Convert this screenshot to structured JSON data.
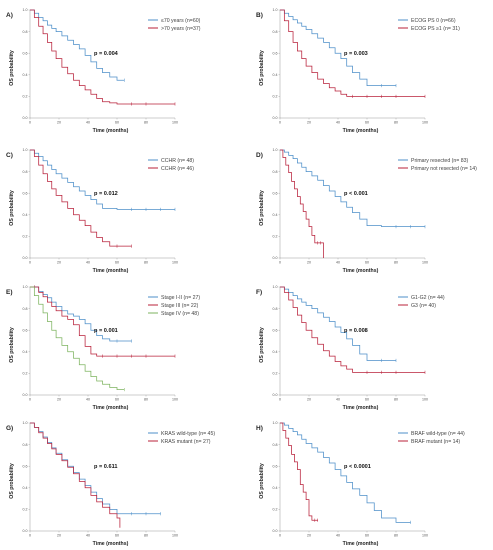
{
  "colors": {
    "blue": "#4d8fc9",
    "red": "#b8203a",
    "green": "#7db35f",
    "axis": "#999999"
  },
  "chart_data": [
    {
      "type": "line",
      "panel": "A)",
      "xlabel": "Time (months)",
      "ylabel": "OS probability",
      "p_value": "p = 0.004",
      "x_ticks": [
        "0",
        "20",
        "40",
        "60",
        "80",
        "100"
      ],
      "y_ticks": [
        "0.0",
        "0.2",
        "0.4",
        "0.6",
        "0.8",
        "1.0"
      ],
      "xlim": [
        0,
        100
      ],
      "ylim": [
        0,
        1
      ],
      "legend_position": "top-right",
      "series": [
        {
          "name": "≤70 years (n=60)",
          "color": "#4d8fc9",
          "x": [
            0,
            3,
            6,
            9,
            12,
            15,
            18,
            22,
            26,
            30,
            34,
            38,
            42,
            46,
            50,
            55,
            60,
            65
          ],
          "y": [
            1,
            0.97,
            0.93,
            0.9,
            0.86,
            0.83,
            0.8,
            0.76,
            0.72,
            0.68,
            0.64,
            0.58,
            0.52,
            0.46,
            0.42,
            0.38,
            0.35,
            0.35
          ]
        },
        {
          "name": ">70 years (n=37)",
          "color": "#b8203a",
          "x": [
            0,
            3,
            6,
            9,
            12,
            15,
            18,
            22,
            26,
            30,
            34,
            38,
            42,
            46,
            50,
            55,
            60,
            70,
            80,
            100
          ],
          "y": [
            1,
            0.93,
            0.85,
            0.78,
            0.7,
            0.62,
            0.55,
            0.47,
            0.41,
            0.35,
            0.3,
            0.26,
            0.22,
            0.18,
            0.15,
            0.14,
            0.13,
            0.13,
            0.13,
            0.13
          ]
        }
      ]
    },
    {
      "type": "line",
      "panel": "B)",
      "xlabel": "Time (months)",
      "ylabel": "OS probability",
      "p_value": "p = 0.003",
      "x_ticks": [
        "0",
        "20",
        "40",
        "60",
        "80",
        "100"
      ],
      "y_ticks": [
        "0.0",
        "0.2",
        "0.4",
        "0.6",
        "0.8",
        "1.0"
      ],
      "xlim": [
        0,
        100
      ],
      "ylim": [
        0,
        1
      ],
      "legend_position": "top-right",
      "series": [
        {
          "name": "ECOG PS 0 (n=66)",
          "color": "#4d8fc9",
          "x": [
            0,
            3,
            6,
            9,
            12,
            15,
            18,
            22,
            26,
            30,
            34,
            38,
            42,
            46,
            50,
            55,
            60,
            70,
            80
          ],
          "y": [
            1,
            0.97,
            0.94,
            0.91,
            0.88,
            0.85,
            0.82,
            0.78,
            0.74,
            0.7,
            0.65,
            0.6,
            0.55,
            0.48,
            0.42,
            0.36,
            0.3,
            0.3,
            0.3
          ]
        },
        {
          "name": "ECOG PS ≥1 (n= 31)",
          "color": "#b8203a",
          "x": [
            0,
            3,
            6,
            9,
            12,
            15,
            18,
            22,
            26,
            30,
            34,
            38,
            42,
            46,
            50,
            60,
            70,
            80,
            100
          ],
          "y": [
            1,
            0.9,
            0.8,
            0.7,
            0.62,
            0.55,
            0.48,
            0.42,
            0.36,
            0.32,
            0.28,
            0.25,
            0.22,
            0.2,
            0.2,
            0.2,
            0.2,
            0.2,
            0.2
          ]
        }
      ]
    },
    {
      "type": "line",
      "panel": "C)",
      "xlabel": "Time (months)",
      "ylabel": "OS probability",
      "p_value": "p = 0.012",
      "x_ticks": [
        "0",
        "20",
        "40",
        "60",
        "80",
        "100"
      ],
      "y_ticks": [
        "0.0",
        "0.2",
        "0.4",
        "0.6",
        "0.8",
        "1.0"
      ],
      "xlim": [
        0,
        100
      ],
      "ylim": [
        0,
        1
      ],
      "legend_position": "top-right",
      "series": [
        {
          "name": "CCHR (n= 48)",
          "color": "#4d8fc9",
          "x": [
            0,
            3,
            6,
            9,
            12,
            15,
            18,
            22,
            26,
            30,
            34,
            38,
            42,
            46,
            50,
            60,
            70,
            80,
            90,
            100
          ],
          "y": [
            1,
            0.97,
            0.94,
            0.9,
            0.86,
            0.82,
            0.78,
            0.74,
            0.7,
            0.66,
            0.62,
            0.58,
            0.54,
            0.5,
            0.46,
            0.45,
            0.45,
            0.45,
            0.45,
            0.45
          ]
        },
        {
          "name": "CCHR (n= 46)",
          "color": "#b8203a",
          "x": [
            0,
            3,
            6,
            9,
            12,
            15,
            18,
            22,
            26,
            30,
            34,
            38,
            42,
            46,
            50,
            55,
            60,
            70
          ],
          "y": [
            1,
            0.94,
            0.86,
            0.78,
            0.71,
            0.64,
            0.58,
            0.52,
            0.46,
            0.4,
            0.35,
            0.3,
            0.24,
            0.19,
            0.15,
            0.11,
            0.11,
            0.11
          ]
        }
      ]
    },
    {
      "type": "line",
      "panel": "D)",
      "xlabel": "Time (months)",
      "ylabel": "OS probability",
      "p_value": "p < 0.001",
      "x_ticks": [
        "0",
        "20",
        "40",
        "60",
        "80",
        "100"
      ],
      "y_ticks": [
        "0.0",
        "0.2",
        "0.4",
        "0.6",
        "0.8",
        "1.0"
      ],
      "xlim": [
        0,
        100
      ],
      "ylim": [
        0,
        1
      ],
      "legend_position": "top-right",
      "series": [
        {
          "name": "Primary resected (n= 83)",
          "color": "#4d8fc9",
          "x": [
            0,
            3,
            6,
            9,
            12,
            15,
            18,
            22,
            26,
            30,
            34,
            38,
            42,
            46,
            50,
            55,
            60,
            70,
            80,
            90,
            100
          ],
          "y": [
            1,
            0.98,
            0.95,
            0.92,
            0.88,
            0.84,
            0.8,
            0.76,
            0.72,
            0.67,
            0.62,
            0.57,
            0.52,
            0.47,
            0.42,
            0.36,
            0.3,
            0.29,
            0.29,
            0.29,
            0.29
          ]
        },
        {
          "name": "Primary not resected (n= 14)",
          "color": "#b8203a",
          "x": [
            0,
            2,
            4,
            6,
            8,
            10,
            12,
            14,
            16,
            18,
            20,
            22,
            24,
            26,
            28,
            30
          ],
          "y": [
            1,
            0.93,
            0.86,
            0.79,
            0.71,
            0.64,
            0.57,
            0.5,
            0.43,
            0.36,
            0.29,
            0.21,
            0.14,
            0.14,
            0.14,
            0
          ]
        }
      ]
    },
    {
      "type": "line",
      "panel": "E)",
      "xlabel": "Time (months)",
      "ylabel": "OS probability",
      "p_value": "p = 0.001",
      "x_ticks": [
        "0",
        "20",
        "40",
        "60",
        "80",
        "100"
      ],
      "y_ticks": [
        "0.0",
        "0.2",
        "0.4",
        "0.6",
        "0.8",
        "1.0"
      ],
      "xlim": [
        0,
        100
      ],
      "ylim": [
        0,
        1
      ],
      "legend_position": "top-right",
      "series": [
        {
          "name": "Stage I-II (n= 27)",
          "color": "#4d8fc9",
          "x": [
            0,
            3,
            6,
            9,
            12,
            15,
            18,
            22,
            26,
            30,
            34,
            38,
            42,
            46,
            50,
            55,
            60,
            70
          ],
          "y": [
            1,
            1,
            0.96,
            0.93,
            0.9,
            0.86,
            0.82,
            0.78,
            0.75,
            0.73,
            0.7,
            0.66,
            0.6,
            0.55,
            0.52,
            0.5,
            0.5,
            0.5
          ]
        },
        {
          "name": "Stage III (n= 22)",
          "color": "#b8203a",
          "x": [
            0,
            3,
            6,
            9,
            12,
            15,
            18,
            22,
            26,
            30,
            34,
            38,
            42,
            46,
            50,
            60,
            70,
            80,
            100
          ],
          "y": [
            1,
            1,
            0.95,
            0.91,
            0.86,
            0.82,
            0.78,
            0.73,
            0.7,
            0.65,
            0.55,
            0.45,
            0.38,
            0.36,
            0.36,
            0.36,
            0.36,
            0.36,
            0.36
          ]
        },
        {
          "name": "Stage IV (n= 48)",
          "color": "#7db35f",
          "x": [
            0,
            3,
            6,
            9,
            12,
            15,
            18,
            22,
            26,
            30,
            34,
            38,
            42,
            46,
            50,
            55,
            60,
            65
          ],
          "y": [
            1,
            0.92,
            0.84,
            0.76,
            0.68,
            0.6,
            0.53,
            0.46,
            0.4,
            0.34,
            0.28,
            0.22,
            0.17,
            0.13,
            0.1,
            0.07,
            0.05,
            0.05
          ]
        }
      ]
    },
    {
      "type": "line",
      "panel": "F)",
      "xlabel": "Time (months)",
      "ylabel": "OS probability",
      "p_value": "p = 0.008",
      "x_ticks": [
        "0",
        "20",
        "40",
        "60",
        "80",
        "100"
      ],
      "y_ticks": [
        "0.0",
        "0.2",
        "0.4",
        "0.6",
        "0.8",
        "1.0"
      ],
      "xlim": [
        0,
        100
      ],
      "ylim": [
        0,
        1
      ],
      "legend_position": "top-right",
      "series": [
        {
          "name": "G1-G2 (n= 44)",
          "color": "#4d8fc9",
          "x": [
            0,
            3,
            6,
            9,
            12,
            15,
            18,
            22,
            26,
            30,
            34,
            38,
            42,
            46,
            50,
            55,
            60,
            70,
            80
          ],
          "y": [
            1,
            0.98,
            0.95,
            0.92,
            0.89,
            0.86,
            0.83,
            0.8,
            0.76,
            0.72,
            0.68,
            0.63,
            0.58,
            0.52,
            0.46,
            0.38,
            0.32,
            0.32,
            0.32
          ]
        },
        {
          "name": "G3 (n= 40)",
          "color": "#b8203a",
          "x": [
            0,
            3,
            6,
            9,
            12,
            15,
            18,
            22,
            26,
            30,
            34,
            38,
            42,
            46,
            50,
            60,
            70,
            80,
            100
          ],
          "y": [
            1,
            0.95,
            0.88,
            0.81,
            0.74,
            0.67,
            0.6,
            0.53,
            0.47,
            0.41,
            0.36,
            0.31,
            0.27,
            0.24,
            0.21,
            0.21,
            0.21,
            0.21,
            0.21
          ]
        }
      ]
    },
    {
      "type": "line",
      "panel": "G)",
      "xlabel": "Time (months)",
      "ylabel": "OS probability",
      "p_value": "p = 0.611",
      "x_ticks": [
        "0",
        "20",
        "40",
        "60",
        "80",
        "100"
      ],
      "y_ticks": [
        "0.0",
        "0.2",
        "0.4",
        "0.6",
        "0.8",
        "1.0"
      ],
      "xlim": [
        0,
        100
      ],
      "ylim": [
        0,
        1
      ],
      "legend_position": "top-right",
      "series": [
        {
          "name": "KRAS wild-type (n= 45)",
          "color": "#4d8fc9",
          "x": [
            0,
            3,
            6,
            9,
            12,
            15,
            18,
            22,
            26,
            30,
            34,
            38,
            42,
            46,
            50,
            55,
            60,
            70,
            80,
            90
          ],
          "y": [
            1,
            0.96,
            0.92,
            0.87,
            0.82,
            0.77,
            0.72,
            0.66,
            0.6,
            0.54,
            0.48,
            0.42,
            0.36,
            0.3,
            0.25,
            0.2,
            0.16,
            0.16,
            0.16,
            0.16
          ]
        },
        {
          "name": "KRAS mutant (n= 27)",
          "color": "#b8203a",
          "x": [
            0,
            3,
            6,
            9,
            12,
            15,
            18,
            22,
            26,
            30,
            34,
            38,
            42,
            46,
            50,
            55,
            60,
            62
          ],
          "y": [
            1,
            0.96,
            0.91,
            0.86,
            0.81,
            0.76,
            0.71,
            0.65,
            0.59,
            0.53,
            0.46,
            0.4,
            0.33,
            0.27,
            0.22,
            0.16,
            0.12,
            0.03
          ]
        }
      ]
    },
    {
      "type": "line",
      "panel": "H)",
      "xlabel": "Time (months)",
      "ylabel": "OS probability",
      "p_value": "p < 0.0001",
      "x_ticks": [
        "0",
        "20",
        "40",
        "60",
        "80",
        "100"
      ],
      "y_ticks": [
        "0.0",
        "0.2",
        "0.4",
        "0.6",
        "0.8",
        "1.0"
      ],
      "xlim": [
        0,
        100
      ],
      "ylim": [
        0,
        1
      ],
      "legend_position": "top-right",
      "series": [
        {
          "name": "BRAF wild-type (n= 44)",
          "color": "#4d8fc9",
          "x": [
            0,
            3,
            6,
            9,
            12,
            15,
            18,
            22,
            26,
            30,
            34,
            38,
            42,
            46,
            50,
            55,
            60,
            65,
            70,
            80,
            90
          ],
          "y": [
            1,
            0.98,
            0.95,
            0.92,
            0.89,
            0.85,
            0.81,
            0.77,
            0.73,
            0.68,
            0.63,
            0.57,
            0.51,
            0.45,
            0.39,
            0.33,
            0.26,
            0.19,
            0.12,
            0.08,
            0.08
          ]
        },
        {
          "name": "BRAF mutant (n= 14)",
          "color": "#b8203a",
          "x": [
            0,
            2,
            4,
            6,
            8,
            10,
            12,
            14,
            16,
            18,
            20,
            22,
            24,
            26
          ],
          "y": [
            1,
            0.93,
            0.86,
            0.79,
            0.71,
            0.64,
            0.57,
            0.43,
            0.36,
            0.29,
            0.14,
            0.1,
            0.1,
            0.1
          ]
        }
      ]
    }
  ]
}
